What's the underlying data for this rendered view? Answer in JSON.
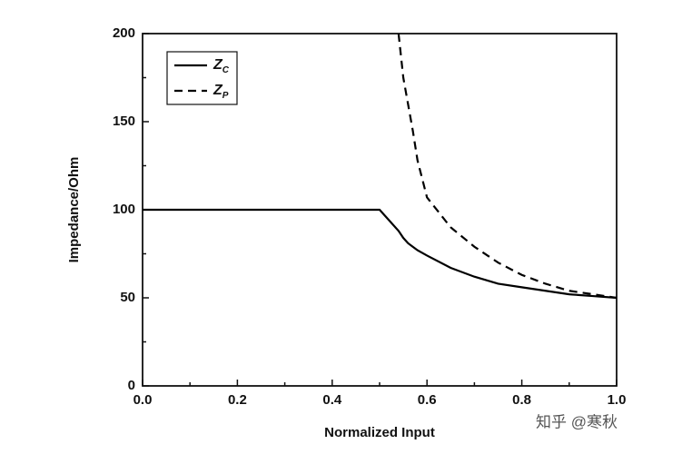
{
  "chart_data": {
    "type": "line",
    "x_label": "Normalized Input",
    "y_label": "Impedance/Ohm",
    "x": [
      0,
      0.5,
      0.54,
      0.55,
      0.56,
      0.57,
      0.58,
      0.6,
      0.65,
      0.7,
      0.75,
      0.8,
      0.85,
      0.9,
      0.95,
      1.0
    ],
    "series": [
      {
        "name": "Z",
        "name_sub": "C",
        "color": "#000000",
        "dash": "solid",
        "values": [
          100,
          100,
          88,
          84,
          81,
          79,
          77,
          74,
          67,
          62,
          58,
          56,
          54,
          52,
          51,
          50
        ]
      },
      {
        "name": "Z",
        "name_sub": "P",
        "color": "#000000",
        "dash": "dashed",
        "values": [
          null,
          null,
          200,
          175,
          160,
          145,
          128,
          107,
          90,
          79,
          70,
          63,
          58,
          54,
          52,
          50
        ]
      }
    ],
    "xlim": [
      0,
      1.0
    ],
    "xticks": [
      {
        "value": 0,
        "label": "0.0"
      },
      {
        "value": 0.2,
        "label": "0.2"
      },
      {
        "value": 0.4,
        "label": "0.4"
      },
      {
        "value": 0.6,
        "label": "0.6"
      },
      {
        "value": 0.8,
        "label": "0.8"
      },
      {
        "value": 1.0,
        "label": "1.0"
      }
    ],
    "ylim": [
      0,
      200
    ],
    "yticks": [
      0,
      50,
      100,
      150,
      200
    ],
    "legend": "top-left",
    "watermark": "知乎 @寒秋"
  }
}
